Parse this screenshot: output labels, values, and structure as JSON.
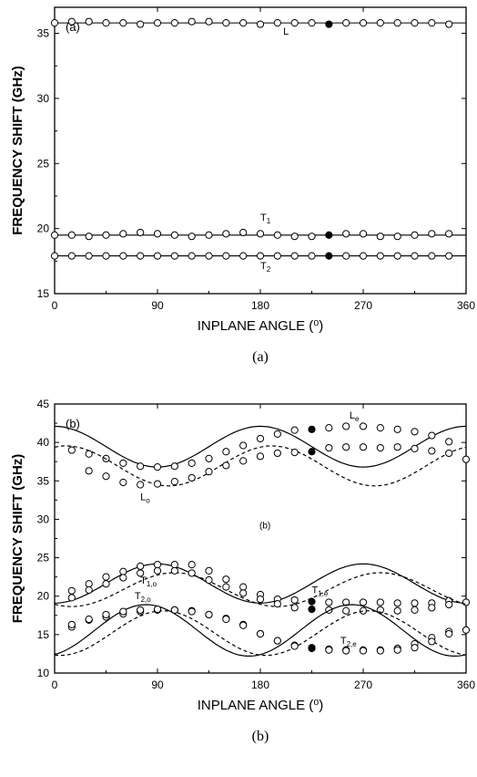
{
  "chart_data": [
    {
      "type": "scatter",
      "panel_label": "(a)",
      "caption": "(a)",
      "xlabel": "INPLANE ANGLE (⁰)",
      "ylabel": "FREQUENCY SHIFT (GHz)",
      "xlim": [
        0,
        360
      ],
      "ylim": [
        15,
        37
      ],
      "xticks": [
        0,
        90,
        180,
        270,
        360
      ],
      "yticks": [
        15,
        20,
        25,
        30,
        35
      ],
      "grid": false,
      "annotations": [
        {
          "text": "L",
          "x": 200,
          "y": 34.9
        },
        {
          "text": "T",
          "sub": "1",
          "x": 180,
          "y": 20.6
        },
        {
          "text": "T",
          "sub": "2",
          "x": 180,
          "y": 16.9
        }
      ],
      "series": [
        {
          "name": "L",
          "x": [
            0,
            15,
            30,
            45,
            60,
            75,
            90,
            105,
            120,
            135,
            150,
            165,
            180,
            195,
            210,
            225,
            240,
            255,
            270,
            285,
            300,
            315,
            330,
            345
          ],
          "y": [
            35.8,
            35.9,
            35.9,
            35.8,
            35.8,
            35.7,
            35.8,
            35.8,
            35.9,
            35.9,
            35.8,
            35.8,
            35.7,
            35.8,
            35.8,
            35.8,
            35.7,
            35.8,
            35.8,
            35.8,
            35.8,
            35.8,
            35.8,
            35.7
          ],
          "filled_index": 16,
          "fit_y": [
            35.8,
            35.8
          ]
        },
        {
          "name": "T1",
          "x": [
            0,
            15,
            30,
            45,
            60,
            75,
            90,
            105,
            120,
            135,
            150,
            165,
            180,
            195,
            210,
            225,
            240,
            255,
            270,
            285,
            300,
            315,
            330,
            345
          ],
          "y": [
            19.5,
            19.5,
            19.4,
            19.5,
            19.6,
            19.7,
            19.6,
            19.5,
            19.4,
            19.5,
            19.6,
            19.7,
            19.6,
            19.5,
            19.4,
            19.4,
            19.5,
            19.6,
            19.6,
            19.4,
            19.4,
            19.5,
            19.6,
            19.6
          ],
          "filled_index": 16,
          "fit_y": [
            19.5,
            19.5
          ]
        },
        {
          "name": "T2",
          "x": [
            0,
            15,
            30,
            45,
            60,
            75,
            90,
            105,
            120,
            135,
            150,
            165,
            180,
            195,
            210,
            225,
            240,
            255,
            270,
            285,
            300,
            315,
            330,
            345
          ],
          "y": [
            17.9,
            17.9,
            17.9,
            17.9,
            17.9,
            17.9,
            17.9,
            17.9,
            17.9,
            17.9,
            17.9,
            17.9,
            17.9,
            17.9,
            17.9,
            17.9,
            17.9,
            17.9,
            17.9,
            17.9,
            17.9,
            17.9,
            17.9,
            17.9
          ],
          "filled_index": 16,
          "fit_y": [
            17.9,
            17.9
          ]
        }
      ]
    },
    {
      "type": "scatter",
      "panel_label": "(b)",
      "inner_label": "(b)",
      "caption": "(b)",
      "xlabel": "INPLANE ANGLE (⁰)",
      "ylabel": "FREQUENCY SHIFT (GHz)",
      "xlim": [
        0,
        360
      ],
      "ylim": [
        10,
        45
      ],
      "xticks": [
        0,
        90,
        180,
        270,
        360
      ],
      "yticks": [
        10,
        15,
        20,
        25,
        30,
        35,
        40,
        45
      ],
      "grid": false,
      "annotations": [
        {
          "text": "L",
          "sub": "e",
          "x": 258,
          "y": 43.1
        },
        {
          "text": "L",
          "sub": "o",
          "x": 75,
          "y": 32.5
        },
        {
          "text": "T",
          "sub": "1,o",
          "x": 75,
          "y": 21.6
        },
        {
          "text": "T",
          "sub": "1,e",
          "x": 225,
          "y": 20.4
        },
        {
          "text": "T",
          "sub": "2,o",
          "x": 70,
          "y": 19.6
        },
        {
          "text": "T",
          "sub": "2,e",
          "x": 250,
          "y": 13.8
        }
      ],
      "series": [
        {
          "name": "Le",
          "line": "solid",
          "fit": {
            "mean": 39.45,
            "amp": 2.65,
            "phase_deg": 180
          },
          "x": [
            15,
            30,
            45,
            60,
            75,
            90,
            105,
            120,
            135,
            150,
            165,
            180,
            195,
            210,
            225,
            240,
            255,
            270,
            285,
            300,
            315,
            330,
            345
          ],
          "y": [
            39.0,
            38.5,
            37.9,
            37.3,
            36.9,
            36.8,
            36.9,
            37.3,
            37.9,
            38.8,
            39.6,
            40.5,
            41.1,
            41.6,
            41.7,
            41.9,
            42.1,
            42.1,
            41.9,
            41.7,
            41.4,
            40.9,
            40.1
          ],
          "filled_x": 225
        },
        {
          "name": "Lo",
          "line": "dashed",
          "fit": {
            "mean": 36.95,
            "amp": 2.6,
            "phase_deg": 190
          },
          "x": [
            30,
            45,
            60,
            75,
            90,
            105,
            120,
            135,
            150,
            165,
            180,
            195,
            210,
            225,
            240,
            255,
            270,
            285,
            300,
            315,
            330,
            345,
            360
          ],
          "y": [
            36.3,
            35.6,
            34.8,
            34.5,
            34.6,
            34.9,
            35.4,
            36.2,
            37.0,
            37.6,
            38.2,
            38.6,
            38.7,
            38.8,
            39.3,
            39.4,
            39.4,
            39.3,
            39.4,
            39.2,
            38.9,
            38.6,
            37.8
          ],
          "filled_x": 225
        },
        {
          "name": "T1,e",
          "line": "solid",
          "fit": {
            "mean": 21.65,
            "amp": 2.55,
            "phase_deg": 90
          },
          "x": [
            15,
            30,
            45,
            60,
            75,
            90,
            105,
            120,
            135,
            150,
            165,
            180,
            195,
            210,
            225,
            240,
            255,
            270,
            285,
            300,
            315,
            330,
            345,
            360
          ],
          "y": [
            20.7,
            21.6,
            22.5,
            23.2,
            23.9,
            24.1,
            24.1,
            24.1,
            23.3,
            22.2,
            21.2,
            20.2,
            19.6,
            19.5,
            19.3,
            19.2,
            19.2,
            19.2,
            19.2,
            19.1,
            19.1,
            19.1,
            19.4,
            19.2
          ],
          "filled_x": 225
        },
        {
          "name": "T1,o",
          "line": "dashed",
          "fit": {
            "mean": 20.85,
            "amp": 2.2,
            "phase_deg": 105
          },
          "x": [
            15,
            30,
            45,
            60,
            75,
            90,
            105,
            120,
            135,
            150,
            165,
            180,
            195,
            210,
            225,
            240,
            255,
            270,
            285,
            300,
            315,
            330,
            345
          ],
          "y": [
            19.8,
            20.8,
            21.6,
            22.4,
            23.0,
            23.3,
            23.3,
            23.0,
            22.1,
            21.2,
            20.4,
            19.6,
            19.0,
            18.5,
            18.3,
            18.2,
            18.1,
            18.1,
            18.2,
            18.1,
            18.2,
            18.5,
            18.9
          ],
          "filled_x": 225
        },
        {
          "name": "T2,o",
          "line": "solid",
          "fit": {
            "mean": 15.55,
            "amp": 3.35,
            "phase_deg": 80
          },
          "x": [
            15,
            30,
            45,
            60,
            75,
            90,
            105,
            120,
            135,
            150,
            165,
            180,
            195,
            210,
            225,
            240,
            255,
            270,
            285,
            300,
            315,
            330,
            345
          ],
          "y": [
            16.0,
            16.9,
            17.3,
            17.7,
            18.0,
            18.2,
            18.2,
            18.1,
            17.6,
            17.1,
            16.3,
            15.1,
            14.2,
            13.6,
            13.3,
            13.1,
            13.0,
            13.0,
            13.0,
            13.2,
            13.8,
            14.6,
            15.4
          ],
          "filled_x": 225
        },
        {
          "name": "T2,e",
          "line": "dashed",
          "fit": {
            "mean": 15.2,
            "amp": 2.9,
            "phase_deg": 95
          },
          "x": [
            15,
            30,
            45,
            60,
            75,
            90,
            105,
            120,
            135,
            150,
            165,
            180,
            195,
            210,
            225,
            240,
            255,
            270,
            285,
            300,
            315,
            330,
            345,
            360
          ],
          "y": [
            16.3,
            17.0,
            17.6,
            18.0,
            18.2,
            18.3,
            18.2,
            18.0,
            17.6,
            17.0,
            16.2,
            15.1,
            14.2,
            13.5,
            13.2,
            13.0,
            12.9,
            12.9,
            12.9,
            13.0,
            13.3,
            14.1,
            15.1,
            15.6
          ],
          "filled_x": 225
        }
      ]
    }
  ]
}
